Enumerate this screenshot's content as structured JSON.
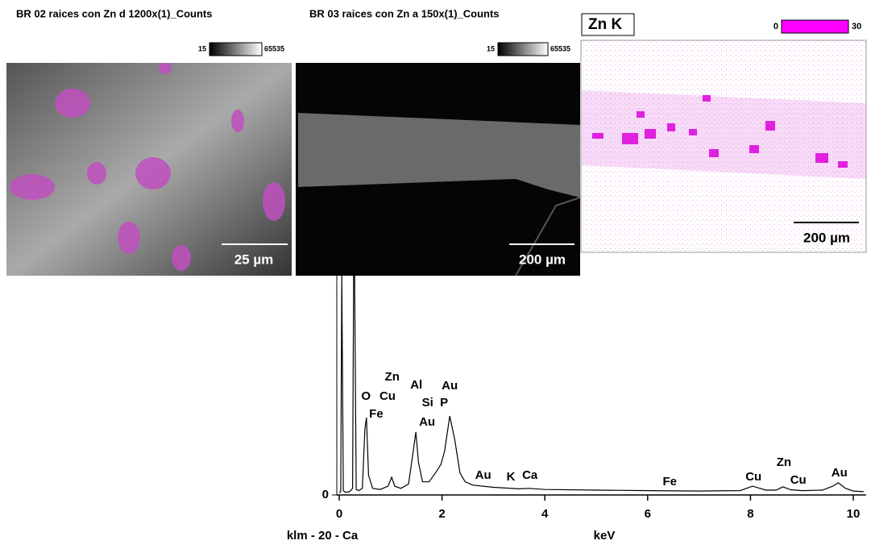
{
  "panels": [
    {
      "title": "BR 02 raices con Zn d 1200x(1)_Counts",
      "colorbar_min": 15,
      "colorbar_max": 65535,
      "scale_bar": "25 µm"
    },
    {
      "title": "BR 03 raices con Zn a 150x(1)_Counts",
      "colorbar_min": 15,
      "colorbar_max": 65535,
      "scale_bar": "200 µm"
    },
    {
      "title": "Zn K",
      "colorbar_min": 0,
      "colorbar_max": 30,
      "scale_bar": "200 µm"
    }
  ],
  "chart_data": {
    "type": "line",
    "x_label": "keV",
    "caption": "klm - 20 - Ca",
    "color": "#000000",
    "xlim": [
      0,
      10.2
    ],
    "xticks": [
      0,
      2,
      4,
      6,
      8,
      10
    ],
    "ylim": [
      0,
      1000
    ],
    "yticks": [
      0
    ],
    "x": [
      0,
      0.03,
      0.05,
      0.08,
      0.12,
      0.2,
      0.26,
      0.28,
      0.3,
      0.33,
      0.38,
      0.45,
      0.5,
      0.53,
      0.57,
      0.65,
      0.8,
      0.95,
      1.02,
      1.08,
      1.2,
      1.35,
      1.44,
      1.49,
      1.54,
      1.62,
      1.75,
      1.9,
      1.98,
      2.05,
      2.15,
      2.25,
      2.35,
      2.45,
      2.6,
      3,
      3.5,
      3.69,
      4,
      5,
      6,
      7,
      7.8,
      8.04,
      8.3,
      8.5,
      8.63,
      8.78,
      9,
      9.4,
      9.6,
      9.71,
      9.85,
      10,
      10.2
    ],
    "values": [
      10,
      15,
      1000,
      20,
      12,
      15,
      30,
      1000,
      1000,
      25,
      20,
      30,
      300,
      353,
      90,
      30,
      25,
      40,
      81,
      40,
      30,
      50,
      200,
      287,
      150,
      60,
      60,
      110,
      140,
      200,
      360,
      250,
      100,
      60,
      45,
      35,
      28,
      30,
      25,
      22,
      20,
      18,
      20,
      40,
      22,
      22,
      37,
      24,
      20,
      22,
      40,
      55,
      30,
      18,
      15
    ],
    "annotations": [
      {
        "text": "Zn",
        "x": 1.03
      },
      {
        "text": "O",
        "x": 0.52
      },
      {
        "text": "Cu",
        "x": 0.94
      },
      {
        "text": "Fe",
        "x": 0.72
      },
      {
        "text": "Al",
        "x": 1.5
      },
      {
        "text": "Si",
        "x": 1.72
      },
      {
        "text": "P",
        "x": 2.04
      },
      {
        "text": "Au",
        "x": 2.15
      },
      {
        "text": "Au",
        "x": 1.71
      },
      {
        "text": "Au",
        "x": 2.8
      },
      {
        "text": "K",
        "x": 3.34
      },
      {
        "text": "Ca",
        "x": 3.71
      },
      {
        "text": "Fe",
        "x": 6.43
      },
      {
        "text": "Cu",
        "x": 8.06
      },
      {
        "text": "Zn",
        "x": 8.65
      },
      {
        "text": "Cu",
        "x": 8.93
      },
      {
        "text": "Au",
        "x": 9.73
      }
    ]
  }
}
